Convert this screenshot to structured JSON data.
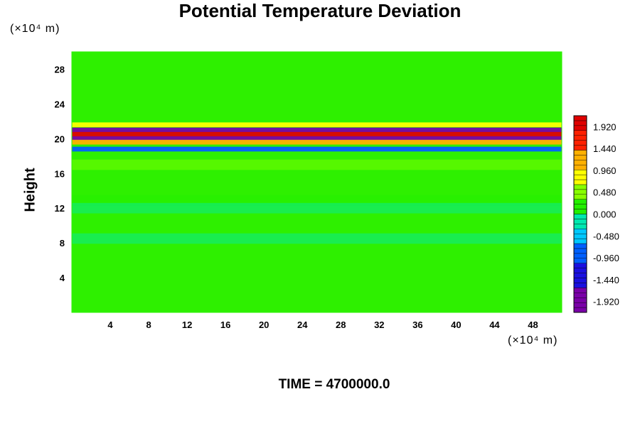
{
  "title": "Potential Temperature Deviation",
  "time_label": "TIME = 4700000.0",
  "y_unit": "(×10⁴ m)",
  "x_unit": "(×10⁴ m)",
  "y_axis_label": "Height",
  "chart_data": {
    "type": "heatmap",
    "title": "Potential Temperature Deviation",
    "ylabel": "Height",
    "x_unit": "(×10⁴ m)",
    "y_unit": "(×10⁴ m)",
    "xlim": [
      0,
      51
    ],
    "ylim": [
      0,
      30
    ],
    "x_ticks": [
      4,
      8,
      12,
      16,
      20,
      24,
      28,
      32,
      36,
      40,
      44,
      48
    ],
    "y_ticks": [
      4,
      8,
      12,
      16,
      20,
      24,
      28
    ],
    "colorbar": {
      "min": -2.16,
      "max": 2.16,
      "tick_values": [
        1.92,
        1.44,
        0.96,
        0.48,
        0.0,
        -0.48,
        -0.96,
        -1.44,
        -1.92
      ],
      "tick_labels": [
        "1.920",
        "1.440",
        "0.960",
        "0.480",
        "0.000",
        "-0.480",
        "-0.960",
        "-1.440",
        "-1.920"
      ]
    },
    "field_bands": [
      {
        "y_center": 21.6,
        "value": 0.9
      },
      {
        "y_center": 21.0,
        "value": -1.9
      },
      {
        "y_center": 20.5,
        "value": 2.0
      },
      {
        "y_center": 20.0,
        "value": -1.9
      },
      {
        "y_center": 19.6,
        "value": 1.3
      },
      {
        "y_center": 18.8,
        "value": -0.9
      },
      {
        "y_center": 17.0,
        "value": 0.5
      },
      {
        "y_center": 12.9,
        "value": 0.35
      },
      {
        "y_center": 12.0,
        "value": -0.25
      },
      {
        "y_center": 8.5,
        "value": -0.1
      }
    ]
  }
}
